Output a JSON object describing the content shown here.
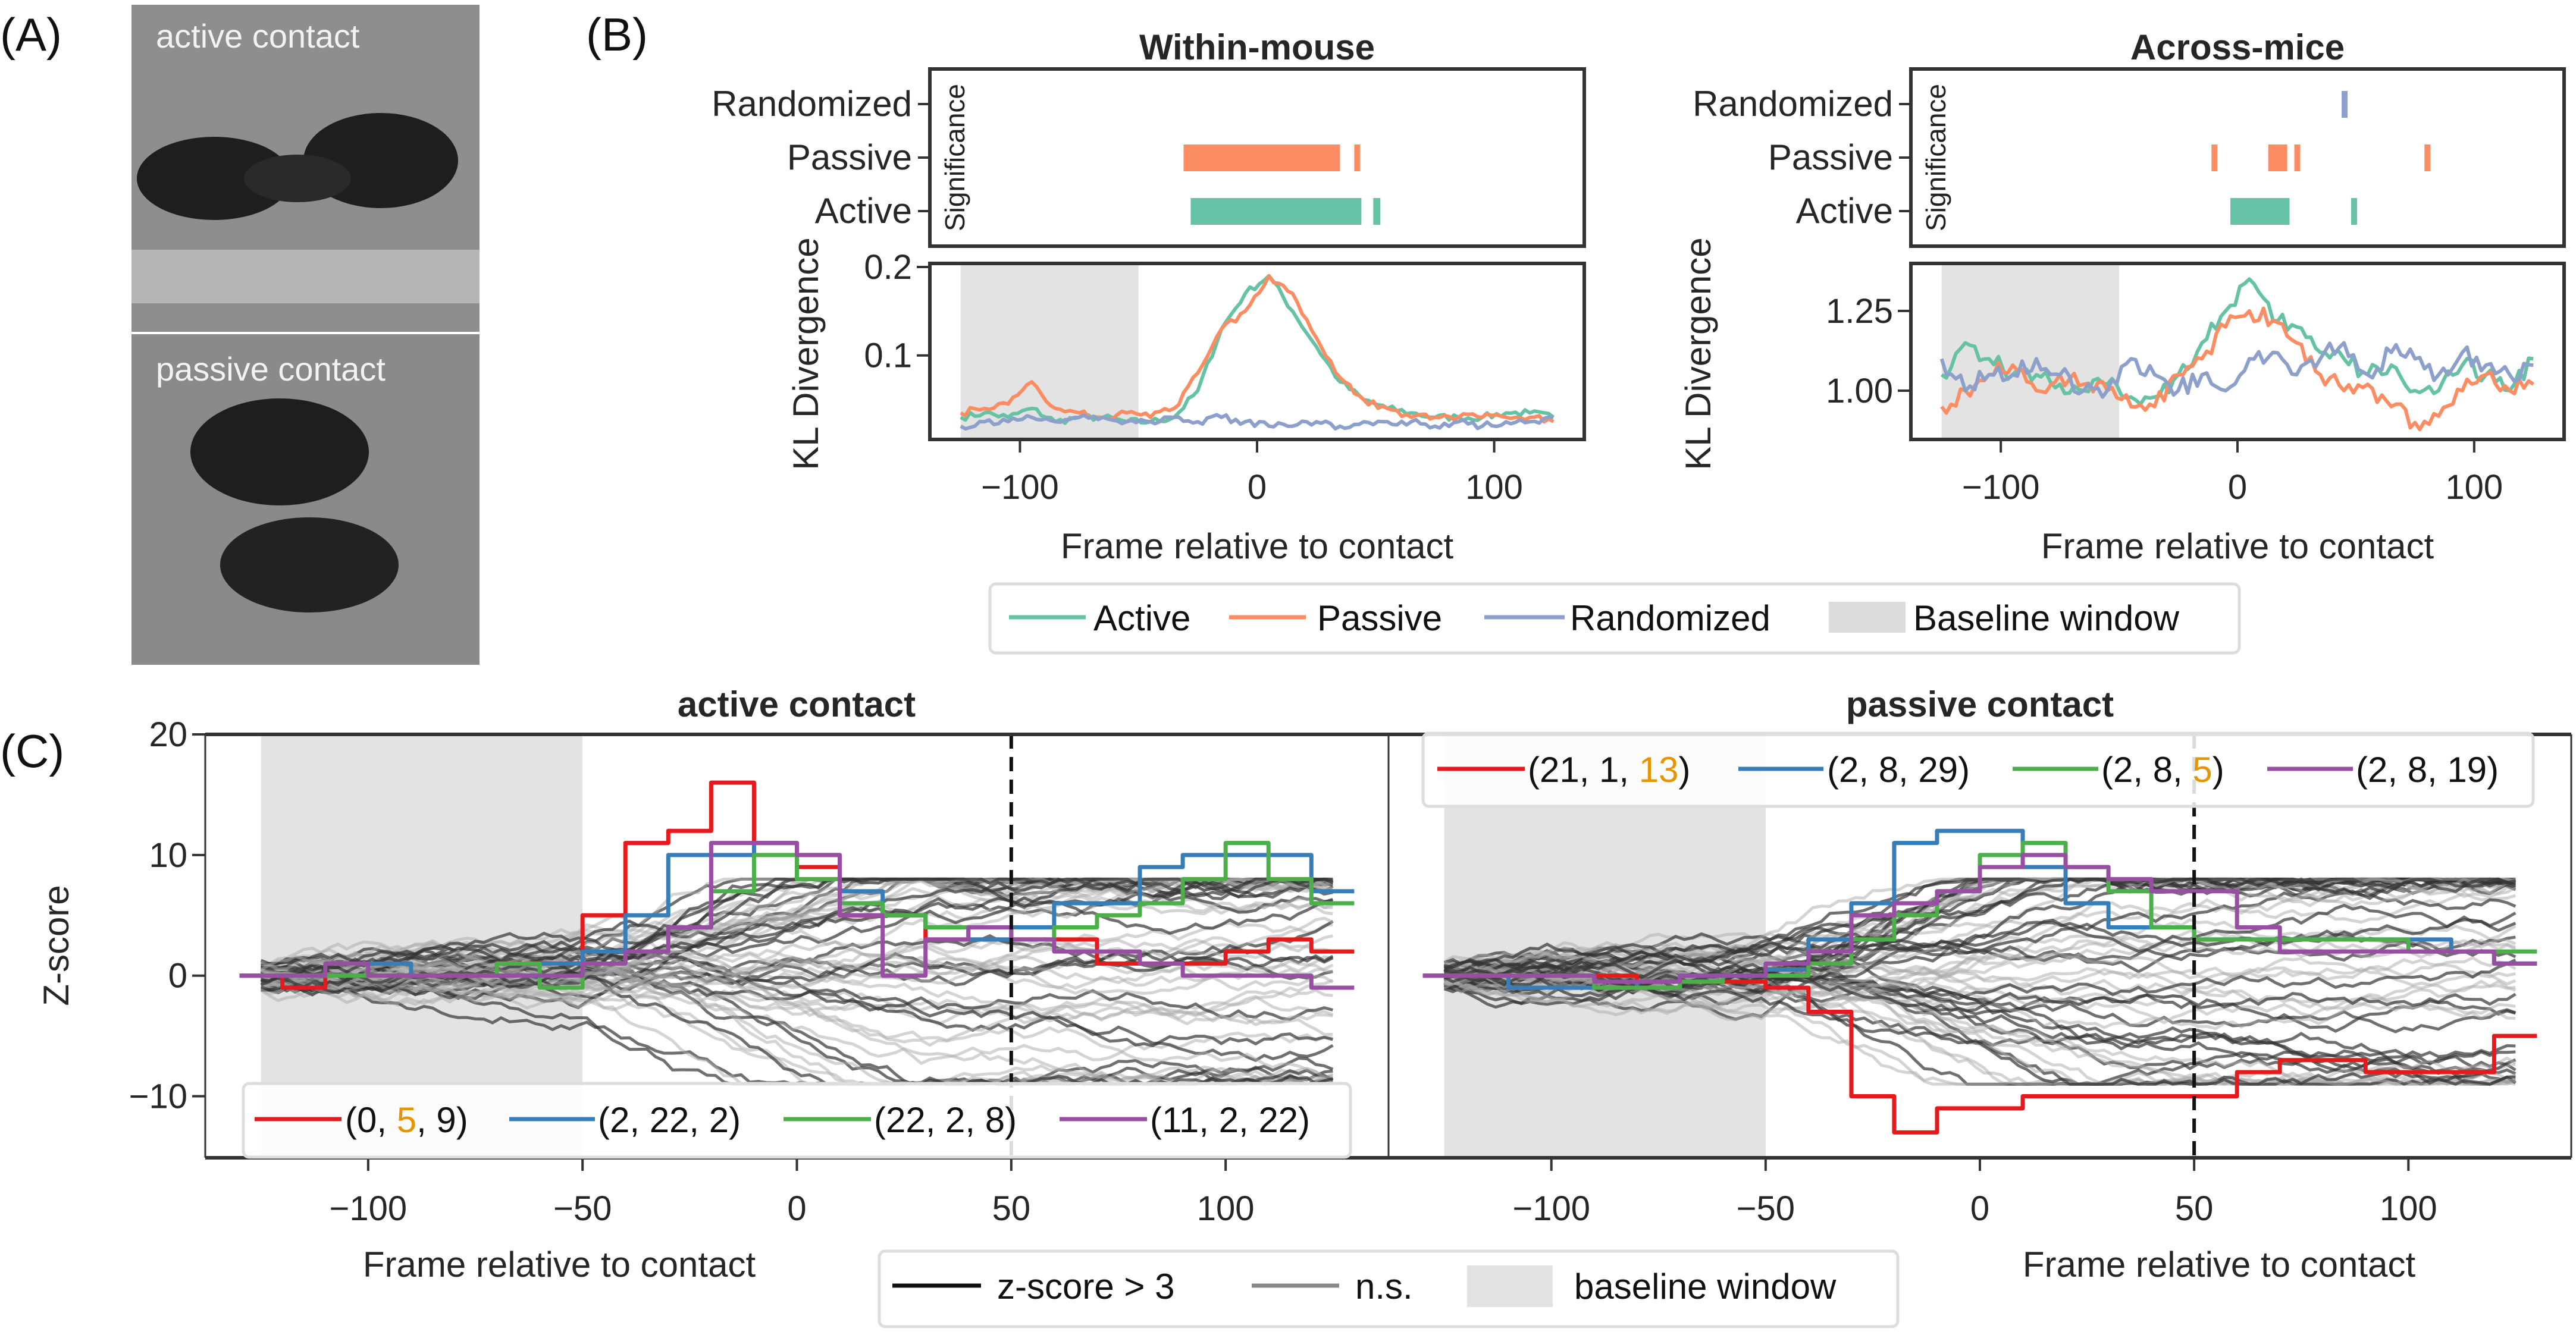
{
  "panel_labels": {
    "a": "(A)",
    "b": "(B)",
    "c": "(C)"
  },
  "panel_a": {
    "top_caption": "active contact",
    "bottom_caption": "passive contact"
  },
  "colors": {
    "active": "#66c2a5",
    "passive": "#fc8d62",
    "randomized": "#8da0cb",
    "baseline": "#e3e3e3",
    "c_red": "#e41a1c",
    "c_blue": "#377eb8",
    "c_green": "#4daf4a",
    "c_purple": "#984ea3",
    "highlight_digit": "#e69500"
  },
  "chart_data": [
    {
      "id": "within",
      "type": "line",
      "title": "Within-mouse",
      "xlabel": "Frame relative to contact",
      "ylabel": "KL Divergence",
      "sig_label": "Significance",
      "xlim": [
        -138,
        138
      ],
      "ylim": [
        0.005,
        0.204
      ],
      "xticks": [
        -100,
        0,
        100
      ],
      "xtick_labels": [
        "−100",
        "0",
        "100"
      ],
      "yticks": [
        0.1,
        0.2
      ],
      "ytick_labels": [
        "0.1",
        "0.2"
      ],
      "baseline_window": [
        -125,
        -50
      ],
      "significance": [
        {
          "label": "Randomized",
          "key": "randomized",
          "intervals": []
        },
        {
          "label": "Passive",
          "key": "passive",
          "intervals": [
            [
              -31,
              35
            ],
            [
              41,
              43
            ]
          ]
        },
        {
          "label": "Active",
          "key": "active",
          "intervals": [
            [
              -28,
              44
            ],
            [
              49,
              52
            ]
          ]
        }
      ],
      "x": [
        -125,
        -115,
        -105,
        -95,
        -85,
        -75,
        -65,
        -55,
        -45,
        -35,
        -25,
        -15,
        -5,
        5,
        15,
        25,
        35,
        45,
        55,
        65,
        75,
        85,
        95,
        105,
        115,
        125
      ],
      "series": [
        {
          "name": "Active",
          "key": "active",
          "values": [
            0.03,
            0.035,
            0.03,
            0.04,
            0.025,
            0.03,
            0.03,
            0.025,
            0.025,
            0.03,
            0.06,
            0.13,
            0.17,
            0.19,
            0.15,
            0.11,
            0.07,
            0.05,
            0.04,
            0.035,
            0.03,
            0.03,
            0.03,
            0.035,
            0.035,
            0.03
          ]
        },
        {
          "name": "Passive",
          "key": "passive",
          "values": [
            0.035,
            0.04,
            0.045,
            0.07,
            0.04,
            0.035,
            0.03,
            0.035,
            0.03,
            0.04,
            0.08,
            0.13,
            0.15,
            0.19,
            0.17,
            0.12,
            0.075,
            0.05,
            0.04,
            0.03,
            0.03,
            0.03,
            0.03,
            0.03,
            0.03,
            0.025
          ]
        },
        {
          "name": "Randomized",
          "key": "randomized",
          "values": [
            0.02,
            0.025,
            0.025,
            0.03,
            0.025,
            0.03,
            0.03,
            0.025,
            0.025,
            0.03,
            0.025,
            0.03,
            0.025,
            0.02,
            0.02,
            0.025,
            0.02,
            0.025,
            0.025,
            0.025,
            0.02,
            0.025,
            0.02,
            0.025,
            0.025,
            0.03
          ]
        }
      ]
    },
    {
      "id": "across",
      "type": "line",
      "title": "Across-mice",
      "xlabel": "Frame relative to contact",
      "ylabel": "KL Divergence",
      "sig_label": "Significance",
      "xlim": [
        -138,
        138
      ],
      "ylim": [
        0.847,
        1.399
      ],
      "xticks": [
        -100,
        0,
        100
      ],
      "xtick_labels": [
        "−100",
        "0",
        "100"
      ],
      "yticks": [
        1.0,
        1.25
      ],
      "ytick_labels": [
        "1.00",
        "1.25"
      ],
      "baseline_window": [
        -125,
        -50
      ],
      "significance": [
        {
          "label": "Randomized",
          "key": "randomized",
          "intervals": [
            [
              44,
              46
            ]
          ]
        },
        {
          "label": "Passive",
          "key": "passive",
          "intervals": [
            [
              -11,
              -9
            ],
            [
              13,
              21
            ],
            [
              24,
              26
            ],
            [
              79,
              81
            ]
          ]
        },
        {
          "label": "Active",
          "key": "active",
          "intervals": [
            [
              -3,
              22
            ],
            [
              48,
              50
            ]
          ]
        }
      ],
      "x": [
        -125,
        -115,
        -105,
        -95,
        -85,
        -75,
        -65,
        -55,
        -45,
        -35,
        -25,
        -15,
        -5,
        5,
        15,
        25,
        35,
        45,
        55,
        65,
        75,
        85,
        95,
        105,
        115,
        125
      ],
      "series": [
        {
          "name": "Active",
          "key": "active",
          "values": [
            1.05,
            1.15,
            1.1,
            1.05,
            1.05,
            1.02,
            1.0,
            1.02,
            0.98,
            0.98,
            1.05,
            1.15,
            1.25,
            1.35,
            1.22,
            1.2,
            1.12,
            1.1,
            1.05,
            1.08,
            1.0,
            1.0,
            1.08,
            1.05,
            1.0,
            1.1
          ]
        },
        {
          "name": "Passive",
          "key": "passive",
          "values": [
            0.95,
            1.0,
            1.05,
            1.08,
            1.0,
            1.05,
            1.02,
            1.0,
            0.95,
            0.95,
            1.05,
            1.1,
            1.2,
            1.25,
            1.22,
            1.15,
            1.05,
            1.0,
            1.02,
            0.95,
            0.9,
            0.92,
            1.0,
            1.05,
            1.0,
            1.02
          ]
        },
        {
          "name": "Randomized",
          "key": "randomized",
          "values": [
            1.1,
            1.0,
            1.05,
            1.05,
            1.1,
            1.05,
            1.0,
            1.0,
            1.1,
            1.05,
            1.0,
            1.05,
            1.0,
            1.1,
            1.12,
            1.05,
            1.1,
            1.15,
            1.05,
            1.12,
            1.1,
            1.05,
            1.12,
            1.08,
            1.05,
            1.08
          ]
        }
      ]
    },
    {
      "id": "c_active",
      "type": "line",
      "title": "active contact",
      "xlabel": "Frame relative to contact",
      "ylabel": "Z-score",
      "xlim": [
        -138,
        138
      ],
      "ylim": [
        -15.1,
        20
      ],
      "xticks": [
        -100,
        -50,
        0,
        50,
        100
      ],
      "xtick_labels": [
        "−100",
        "−50",
        "0",
        "50",
        "100"
      ],
      "yticks": [
        -10,
        0,
        10,
        20
      ],
      "ytick_labels": [
        "−10",
        "0",
        "10",
        "20"
      ],
      "baseline_window": [
        -125,
        -50
      ],
      "dashed_line_x": 50,
      "n_background_traces": 60,
      "x": [
        -125,
        -115,
        -105,
        -95,
        -85,
        -75,
        -65,
        -55,
        -45,
        -35,
        -25,
        -15,
        -5,
        5,
        15,
        25,
        35,
        45,
        55,
        65,
        75,
        85,
        95,
        105,
        115,
        125
      ],
      "series": [
        {
          "name": [
            "(0, ",
            "5",
            ", 9)"
          ],
          "key": "c_red",
          "values": [
            0,
            -1,
            0,
            0,
            0,
            0,
            1,
            1,
            5,
            11,
            12,
            16,
            11,
            9,
            5,
            5,
            3,
            3,
            3,
            3,
            1,
            1,
            1,
            2,
            3,
            2
          ]
        },
        {
          "name": [
            "(2, 22, 2)"
          ],
          "key": "c_blue",
          "values": [
            0,
            0,
            0,
            1,
            0,
            0,
            0,
            1,
            2,
            5,
            10,
            10,
            11,
            10,
            7,
            5,
            4,
            3,
            4,
            6,
            6,
            9,
            10,
            10,
            10,
            7
          ]
        },
        {
          "name": [
            "(22, 2, 8)"
          ],
          "key": "c_green",
          "values": [
            0,
            0,
            0,
            0,
            0,
            0,
            1,
            -1,
            1,
            2,
            4,
            7,
            10,
            8,
            6,
            5,
            4,
            4,
            3,
            4,
            5,
            6,
            8,
            11,
            8,
            6
          ]
        },
        {
          "name": [
            "(11, 2, 22)"
          ],
          "key": "c_purple",
          "values": [
            0,
            0,
            1,
            0,
            0,
            0,
            0,
            0,
            1,
            2,
            4,
            11,
            11,
            10,
            5,
            0,
            3,
            4,
            3,
            2,
            2,
            1,
            0,
            0,
            0,
            -1
          ]
        }
      ]
    },
    {
      "id": "c_passive",
      "type": "line",
      "title": "passive contact",
      "xlabel": "Frame relative to contact",
      "xlim": [
        -138,
        138
      ],
      "ylim": [
        -15.1,
        20
      ],
      "xticks": [
        -100,
        -50,
        0,
        50,
        100
      ],
      "xtick_labels": [
        "−100",
        "−50",
        "0",
        "50",
        "100"
      ],
      "baseline_window": [
        -125,
        -50
      ],
      "dashed_line_x": 50,
      "n_background_traces": 60,
      "x": [
        -125,
        -115,
        -105,
        -95,
        -85,
        -75,
        -65,
        -55,
        -45,
        -35,
        -25,
        -15,
        -5,
        5,
        15,
        25,
        35,
        45,
        55,
        65,
        75,
        85,
        95,
        105,
        115,
        125
      ],
      "series": [
        {
          "name": [
            "(21, 1, ",
            "13",
            ")"
          ],
          "key": "c_red",
          "values": [
            0,
            0,
            0,
            0,
            0,
            -0.5,
            -0.5,
            -0.5,
            -1,
            -3,
            -10,
            -13,
            -11,
            -11,
            -10,
            -10,
            -10,
            -10,
            -10,
            -8,
            -7,
            -7,
            -8,
            -8,
            -8,
            -5
          ]
        },
        {
          "name": [
            "(2, 8, 29)"
          ],
          "key": "c_blue",
          "values": [
            0,
            0,
            -1,
            -1,
            -1,
            -0.5,
            0,
            0,
            0.5,
            3,
            6,
            11,
            12,
            12,
            9,
            6,
            4,
            4,
            3,
            3,
            3,
            3,
            3,
            3,
            2,
            1
          ]
        },
        {
          "name": [
            "(2, 8, ",
            "5",
            ")"
          ],
          "key": "c_green",
          "values": [
            0,
            0,
            0,
            0,
            -1,
            -1,
            -0.5,
            0,
            0,
            1,
            3,
            5,
            7,
            10,
            11,
            9,
            7,
            4,
            3,
            3,
            3,
            3,
            3,
            2,
            2,
            2
          ]
        },
        {
          "name": [
            "(2, 8, 19)"
          ],
          "key": "c_purple",
          "values": [
            0,
            0,
            0,
            0,
            -0.5,
            -0.5,
            0,
            0,
            1,
            2,
            5,
            6,
            7,
            9,
            10,
            9,
            8,
            7,
            7,
            4,
            2,
            2,
            2,
            2,
            2,
            1
          ]
        }
      ]
    }
  ],
  "legend_b": {
    "active": "Active",
    "passive": "Passive",
    "randomized": "Randomized",
    "baseline": "Baseline window"
  },
  "legend_c": {
    "sig": "z-score > 3",
    "ns": "n.s.",
    "baseline": "baseline window"
  }
}
